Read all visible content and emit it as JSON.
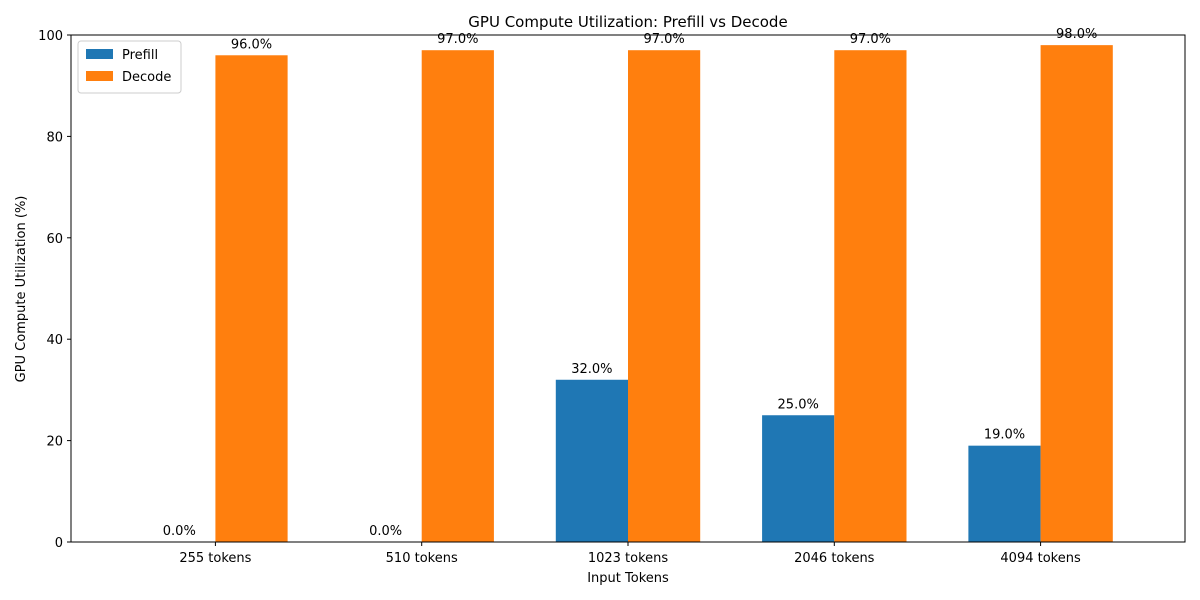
{
  "chart_data": {
    "type": "bar",
    "title": "GPU Compute Utilization: Prefill vs Decode",
    "xlabel": "Input Tokens",
    "ylabel": "GPU Compute Utilization (%)",
    "categories": [
      "255 tokens",
      "510 tokens",
      "1023 tokens",
      "2046 tokens",
      "4094 tokens"
    ],
    "series": [
      {
        "name": "Prefill",
        "color": "#1f77b4",
        "values": [
          0,
          0,
          32,
          25,
          19
        ],
        "labels": [
          "0.0%",
          "0.0%",
          "32.0%",
          "25.0%",
          "19.0%"
        ]
      },
      {
        "name": "Decode",
        "color": "#ff7f0e",
        "values": [
          96,
          97,
          97,
          97,
          98
        ],
        "labels": [
          "96.0%",
          "97.0%",
          "97.0%",
          "97.0%",
          "98.0%"
        ]
      }
    ],
    "ylim": [
      0,
      100
    ],
    "yticks": [
      0,
      20,
      40,
      60,
      80,
      100
    ],
    "ytick_labels": [
      "0",
      "20",
      "40",
      "60",
      "80",
      "100"
    ],
    "grid": false,
    "legend_position": "top-left"
  }
}
